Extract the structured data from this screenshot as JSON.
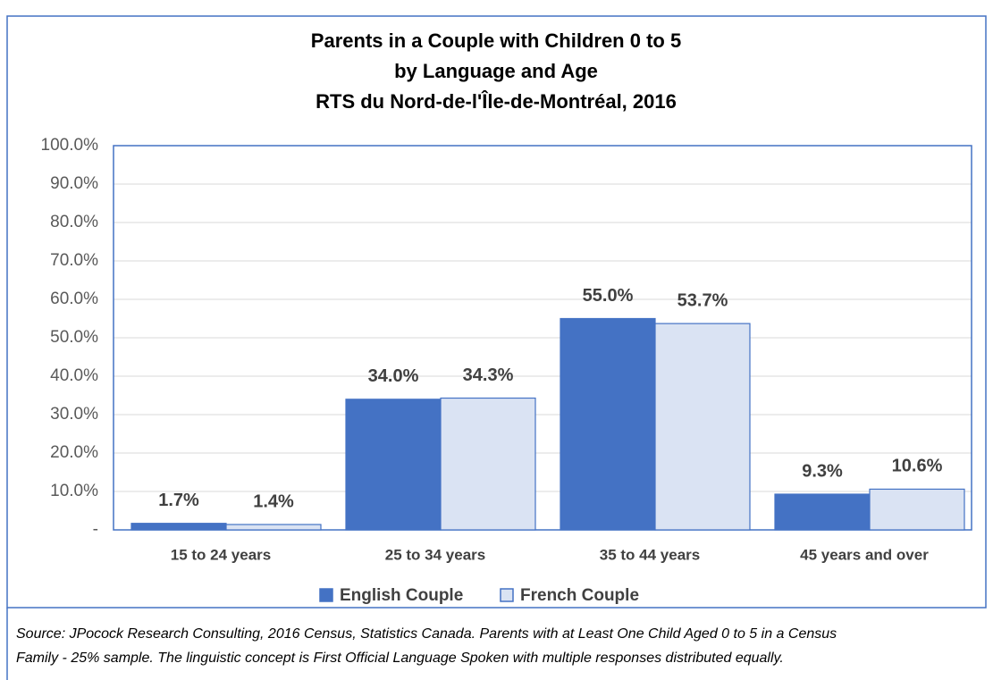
{
  "chart_data": {
    "type": "bar",
    "title": [
      "Parents in a Couple with Children 0 to 5",
      "by Language and Age",
      "RTS du Nord-de-l'Île-de-Montréal, 2016"
    ],
    "categories": [
      "15 to 24 years",
      "25 to 34 years",
      "35 to 44 years",
      "45 years and over"
    ],
    "series": [
      {
        "name": "English Couple",
        "color": "#4472c4",
        "values": [
          1.7,
          34.0,
          55.0,
          9.3
        ],
        "value_labels": [
          "1.7%",
          "34.0%",
          "55.0%",
          "9.3%"
        ]
      },
      {
        "name": "French Couple",
        "color": "#dae3f3",
        "values": [
          1.4,
          34.3,
          53.7,
          10.6
        ],
        "value_labels": [
          "1.4%",
          "34.3%",
          "53.7%",
          "10.6%"
        ]
      }
    ],
    "ylim": [
      0,
      100
    ],
    "yticks": [
      {
        "value": 0,
        "label": "-"
      },
      {
        "value": 10,
        "label": "10.0%"
      },
      {
        "value": 20,
        "label": "20.0%"
      },
      {
        "value": 30,
        "label": "30.0%"
      },
      {
        "value": 40,
        "label": "40.0%"
      },
      {
        "value": 50,
        "label": "50.0%"
      },
      {
        "value": 60,
        "label": "60.0%"
      },
      {
        "value": 70,
        "label": "70.0%"
      },
      {
        "value": 80,
        "label": "80.0%"
      },
      {
        "value": 90,
        "label": "90.0%"
      },
      {
        "value": 100,
        "label": "100.0%"
      }
    ],
    "grid": true,
    "legend": "bottom",
    "source": [
      "Source: JPocock Research Consulting, 2016 Census, Statistics Canada. Parents with at Least One Child Aged 0 to 5 in a Census",
      "Family - 25% sample. The linguistic concept is First Official Language Spoken with multiple responses distributed equally."
    ]
  }
}
